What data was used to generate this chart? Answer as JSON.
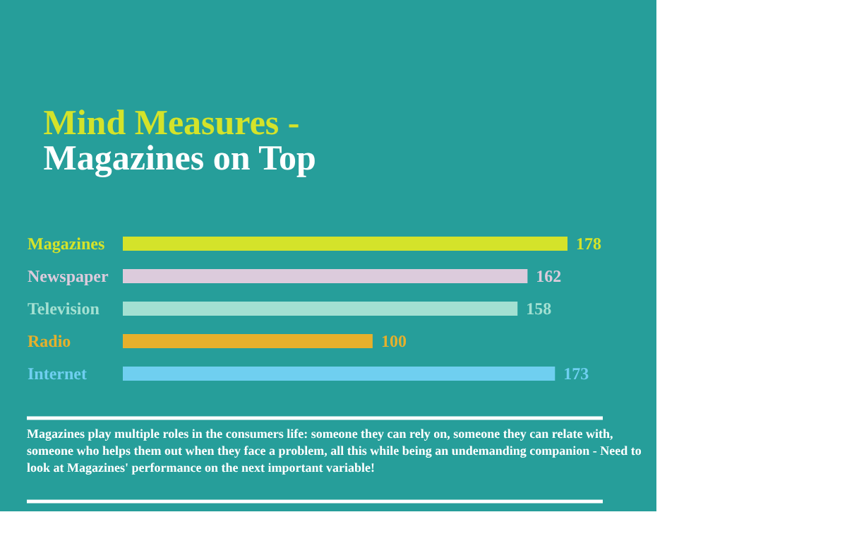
{
  "chart_data": {
    "type": "bar",
    "orientation": "horizontal",
    "title": "Mind Measures -",
    "subtitle": "Magazines on Top",
    "categories": [
      "Magazines",
      "Newspaper",
      "Television",
      "Radio",
      "Internet"
    ],
    "values": [
      178,
      162,
      158,
      100,
      173
    ],
    "colors": [
      "#d4e32a",
      "#dccbdc",
      "#a3e0d2",
      "#e6b02c",
      "#6fcff0"
    ],
    "data_labels": true,
    "grid": false,
    "tick_labels": "y",
    "annotations": [
      "Magazines play multiple roles in the consumers life: someone they can rely on, someone they can relate with, someone who helps them out when they face a problem, all this while being an undemanding companion - Need to look at Magazines' performance on the next important variable!"
    ]
  }
}
